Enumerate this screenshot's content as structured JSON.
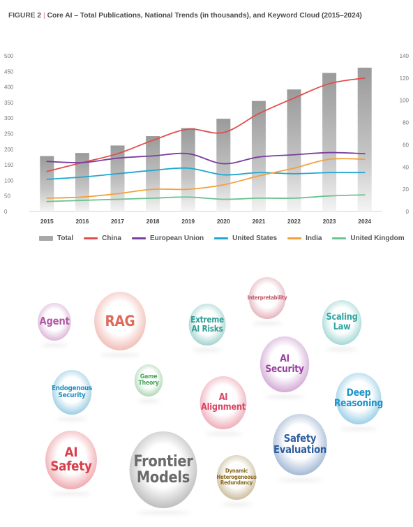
{
  "figure": {
    "label": "FIGURE 2",
    "separator": "|",
    "title": "Core AI – Total Publications, National Trends (in thousands), and Keyword Cloud (2015–2024)"
  },
  "chart_data": {
    "type": "bar+line",
    "categories": [
      "2015",
      "2016",
      "2017",
      "2018",
      "2019",
      "2020",
      "2021",
      "2022",
      "2023",
      "2024"
    ],
    "left_axis": {
      "ylim": [
        0,
        500
      ],
      "ticks": [
        0,
        50,
        100,
        150,
        200,
        250,
        300,
        350,
        400,
        450,
        500
      ]
    },
    "right_axis": {
      "ylim": [
        0,
        140
      ],
      "ticks": [
        0,
        20,
        40,
        60,
        80,
        100,
        120,
        140
      ]
    },
    "bars": {
      "name": "Total",
      "axis": "left",
      "color": "#a8a8a8",
      "values": [
        178,
        188,
        212,
        242,
        268,
        298,
        355,
        392,
        445,
        462
      ]
    },
    "series": [
      {
        "name": "China",
        "axis": "right",
        "color": "#e04e4e",
        "values": [
          36,
          44,
          52,
          64,
          74,
          71,
          88,
          102,
          115,
          120
        ]
      },
      {
        "name": "European Union",
        "axis": "right",
        "color": "#7a3f9d",
        "values": [
          45,
          44,
          48,
          50,
          52,
          43,
          49,
          51,
          53,
          52
        ]
      },
      {
        "name": "United States",
        "axis": "right",
        "color": "#1ea8d2",
        "values": [
          29,
          31,
          34,
          37,
          39,
          33,
          35,
          34,
          35,
          35
        ]
      },
      {
        "name": "India",
        "axis": "right",
        "color": "#f4a03a",
        "values": [
          12,
          13,
          16,
          20,
          20,
          24,
          32,
          39,
          47,
          47
        ]
      },
      {
        "name": "United Kingdom",
        "axis": "right",
        "color": "#6cc38f",
        "values": [
          9,
          10,
          11,
          12,
          13,
          11,
          12,
          12,
          14,
          15
        ]
      }
    ],
    "grid": false,
    "legend_position": "bottom"
  },
  "keyword_cloud": [
    {
      "id": "agent",
      "text": "Agent",
      "color": "#b05aa6"
    },
    {
      "id": "rag",
      "text": "RAG",
      "color": "#e06a5a"
    },
    {
      "id": "extreme-ai-risks",
      "text": "Extreme AI Risks",
      "color": "#2f9d94"
    },
    {
      "id": "interpretability",
      "text": "Interpretability",
      "color": "#c2566a"
    },
    {
      "id": "scaling-law",
      "text": "Scaling Law",
      "color": "#2fa7a2"
    },
    {
      "id": "ai-security",
      "text": "AI Security",
      "color": "#9a3fa0"
    },
    {
      "id": "endogenous-security",
      "text": "Endogenous Security",
      "color": "#1e8fbf"
    },
    {
      "id": "game-theory",
      "text": "Game Theory",
      "color": "#4aa65a"
    },
    {
      "id": "ai-alignment",
      "text": "AI Alignment",
      "color": "#d94562"
    },
    {
      "id": "deep-reasoning",
      "text": "Deep Reasoning",
      "color": "#1e93c9"
    },
    {
      "id": "ai-safety",
      "text": "AI Safety",
      "color": "#d93e4a"
    },
    {
      "id": "frontier-models",
      "text": "Frontier Models",
      "color": "#6a6a6a"
    },
    {
      "id": "safety-evaluation",
      "text": "Safety Evaluation",
      "color": "#2e5e9f"
    },
    {
      "id": "dynamic-heterogeneous-redundancy",
      "text": "Dynamic Heterogeneous Redundancy",
      "color": "#8a6a22"
    }
  ]
}
